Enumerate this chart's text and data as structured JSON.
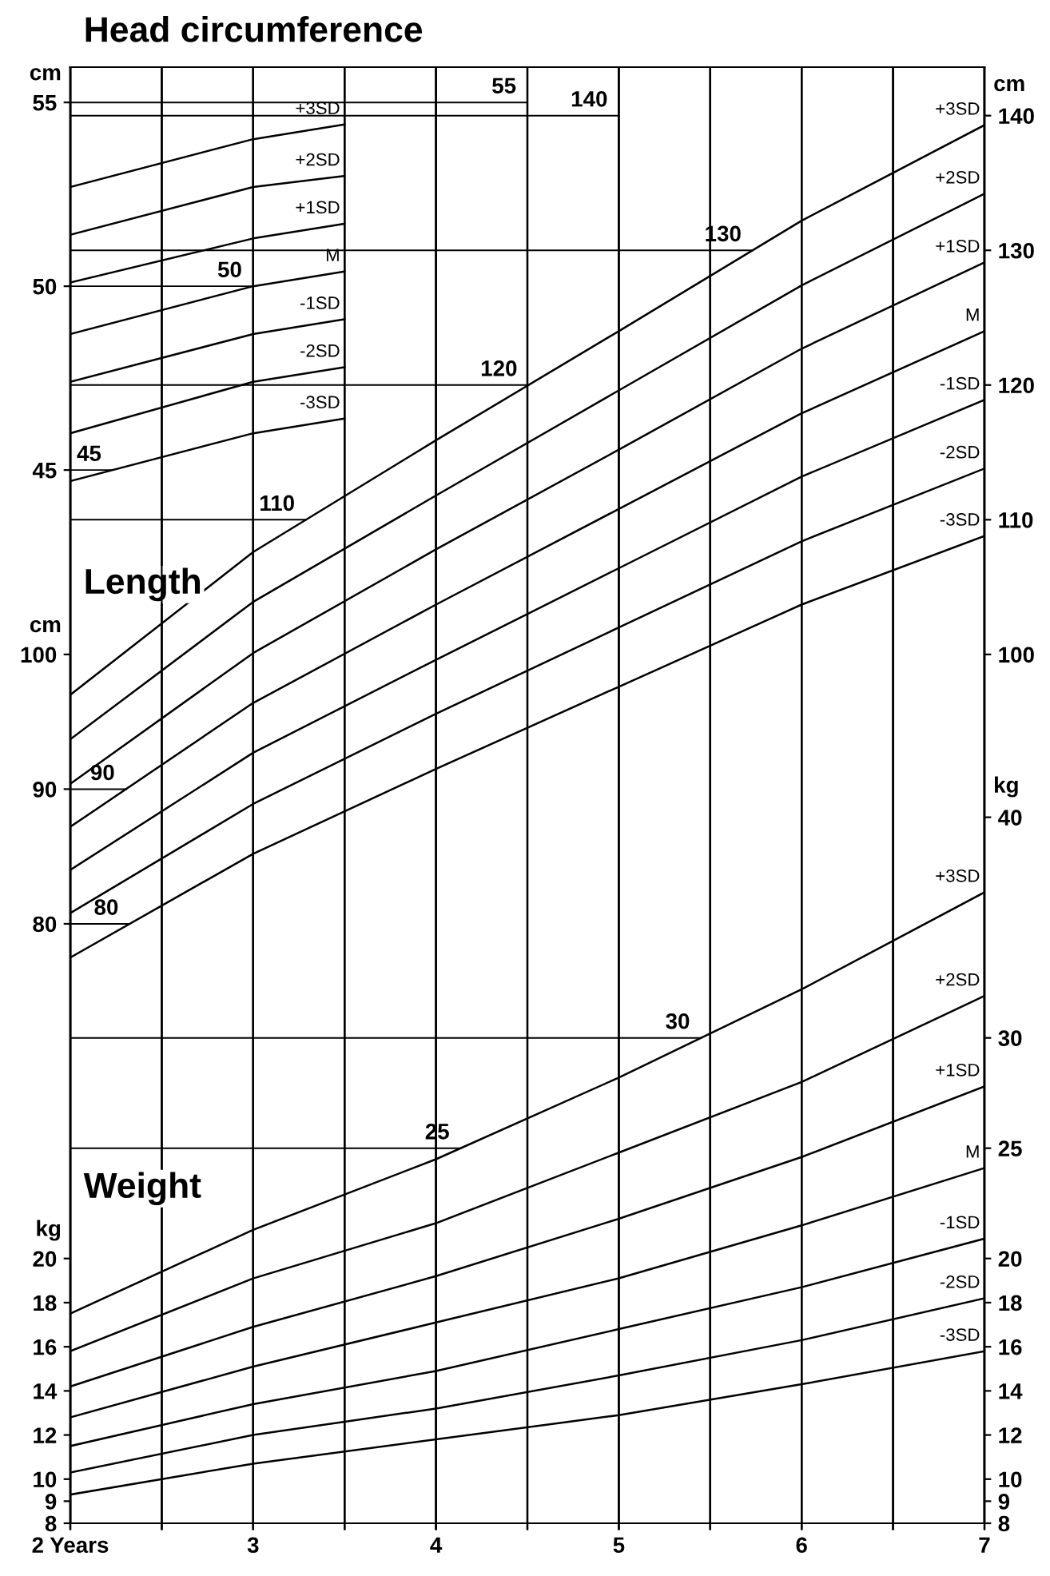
{
  "chart_data": [
    {
      "type": "line",
      "title": "Head circumference",
      "ylabel": "cm",
      "tick_labels": "y",
      "grid": "x",
      "x": [
        2,
        3,
        3.5
      ],
      "xlim": [
        2,
        7
      ],
      "xticks": [
        2,
        2.5,
        3,
        3.5,
        4,
        4.5,
        5,
        5.5,
        6,
        6.5,
        7
      ],
      "ylim": [
        16.35,
        55.96
      ],
      "yticks": [
        45,
        50,
        55
      ],
      "series": [
        {
          "name": "+3SD",
          "color": "#000000",
          "values": [
            52.7,
            54.0,
            54.4
          ]
        },
        {
          "name": "+2SD",
          "color": "#000000",
          "values": [
            51.4,
            52.7,
            53.0
          ]
        },
        {
          "name": "+1SD",
          "color": "#000000",
          "values": [
            50.1,
            51.3,
            51.7
          ]
        },
        {
          "name": "M",
          "color": "#000000",
          "values": [
            48.7,
            50.0,
            50.4
          ]
        },
        {
          "name": "-1SD",
          "color": "#000000",
          "values": [
            47.4,
            48.7,
            49.1
          ]
        },
        {
          "name": "-2SD",
          "color": "#000000",
          "values": [
            46.0,
            47.4,
            47.8
          ]
        },
        {
          "name": "-3SD",
          "color": "#000000",
          "values": [
            44.7,
            46.0,
            46.4
          ]
        }
      ],
      "ref_lines": [
        {
          "axis": "y",
          "value": 55,
          "label": "55"
        },
        {
          "axis": "y",
          "value": 50,
          "label": "50"
        },
        {
          "axis": "y",
          "value": 45,
          "label": "45"
        }
      ]
    },
    {
      "type": "line",
      "title": "Length",
      "ylabel": "cm",
      "y2label": "cm",
      "tick_labels": "y",
      "grid": "x",
      "x": [
        2,
        3,
        4,
        5,
        6,
        7
      ],
      "xlim": [
        2,
        7
      ],
      "xticks": [
        2,
        2.5,
        3,
        3.5,
        4,
        4.5,
        5,
        5.5,
        6,
        6.5,
        7
      ],
      "ylim": [
        35.5,
        143.6
      ],
      "yticks": [
        80,
        90,
        100
      ],
      "y2lim": [
        35.5,
        143.6
      ],
      "y2ticks": [
        100,
        110,
        120,
        130,
        140
      ],
      "series": [
        {
          "name": "+3SD",
          "color": "#000000",
          "values": [
            97.0,
            107.6,
            115.9,
            124.0,
            132.2,
            139.3
          ]
        },
        {
          "name": "+2SD",
          "color": "#000000",
          "values": [
            93.7,
            103.9,
            111.8,
            119.6,
            127.4,
            134.2
          ]
        },
        {
          "name": "+1SD",
          "color": "#000000",
          "values": [
            90.4,
            100.1,
            107.8,
            115.2,
            122.7,
            129.1
          ]
        },
        {
          "name": "M",
          "color": "#000000",
          "values": [
            87.2,
            96.4,
            103.7,
            110.8,
            117.9,
            124.0
          ]
        },
        {
          "name": "-1SD",
          "color": "#000000",
          "values": [
            84.0,
            92.7,
            99.6,
            106.4,
            113.2,
            118.9
          ]
        },
        {
          "name": "-2SD",
          "color": "#000000",
          "values": [
            80.8,
            88.9,
            95.6,
            102.0,
            108.4,
            113.8
          ]
        },
        {
          "name": "-3SD",
          "color": "#000000",
          "values": [
            77.5,
            85.2,
            91.5,
            97.6,
            103.7,
            108.8
          ]
        }
      ],
      "ref_lines": [
        {
          "axis": "y",
          "value": 140,
          "label": "140"
        },
        {
          "axis": "y",
          "value": 130,
          "label": "130"
        },
        {
          "axis": "y",
          "value": 120,
          "label": "120"
        },
        {
          "axis": "y",
          "value": 110,
          "label": "110"
        },
        {
          "axis": "y",
          "value": 90,
          "label": "90"
        },
        {
          "axis": "y",
          "value": 80,
          "label": "80"
        }
      ]
    },
    {
      "type": "line",
      "title": "Weight",
      "ylabel": "kg",
      "y2label": "kg",
      "grid": "x",
      "x": [
        2,
        3,
        4,
        5,
        6,
        7
      ],
      "xlim": [
        2,
        7
      ],
      "xticks": [
        {
          "value": 2,
          "label": "2 Years"
        },
        {
          "value": 2.5,
          "label": null
        },
        3,
        {
          "value": 3.5,
          "label": null
        },
        4,
        {
          "value": 4.5,
          "label": null
        },
        5,
        {
          "value": 5.5,
          "label": null
        },
        6,
        {
          "value": 6.5,
          "label": null
        },
        7
      ],
      "ylim": [
        8,
        74
      ],
      "yticks": [
        8,
        9,
        10,
        12,
        14,
        16,
        18,
        20
      ],
      "y2lim": [
        8,
        74
      ],
      "y2ticks": [
        8,
        9,
        10,
        12,
        14,
        16,
        18,
        20,
        25,
        30,
        40
      ],
      "series": [
        {
          "name": "+3SD",
          "color": "#000000",
          "values": [
            17.5,
            21.3,
            24.5,
            28.2,
            32.2,
            36.6
          ]
        },
        {
          "name": "+2SD",
          "color": "#000000",
          "values": [
            15.8,
            19.1,
            21.6,
            24.8,
            28.0,
            31.9
          ]
        },
        {
          "name": "+1SD",
          "color": "#000000",
          "values": [
            14.2,
            16.9,
            19.2,
            21.8,
            24.6,
            27.8
          ]
        },
        {
          "name": "M",
          "color": "#000000",
          "values": [
            12.8,
            15.1,
            17.1,
            19.1,
            21.5,
            24.1
          ]
        },
        {
          "name": "-1SD",
          "color": "#000000",
          "values": [
            11.5,
            13.4,
            14.9,
            16.8,
            18.7,
            20.9
          ]
        },
        {
          "name": "-2SD",
          "color": "#000000",
          "values": [
            10.3,
            12.0,
            13.2,
            14.7,
            16.3,
            18.2
          ]
        },
        {
          "name": "-3SD",
          "color": "#000000",
          "values": [
            9.3,
            10.7,
            11.8,
            12.9,
            14.3,
            15.8
          ]
        }
      ],
      "ref_lines": [
        {
          "axis": "y",
          "value": 30,
          "label": "30"
        },
        {
          "axis": "y",
          "value": 25,
          "label": "25"
        }
      ]
    }
  ]
}
